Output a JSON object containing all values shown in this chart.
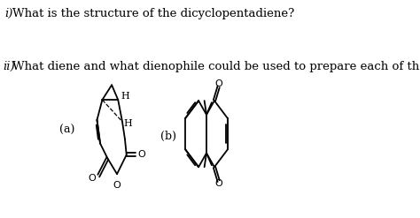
{
  "bg_color": "#ffffff",
  "text_color": "#000000",
  "q1_number": "i)",
  "q1_text": "What is the structure of the dicyclopentadiene?",
  "q2_number": "ii)",
  "q2_text": "What diene and what dienophile could be used to prepare each of the following?",
  "label_a": "(a)",
  "label_b": "(b)"
}
